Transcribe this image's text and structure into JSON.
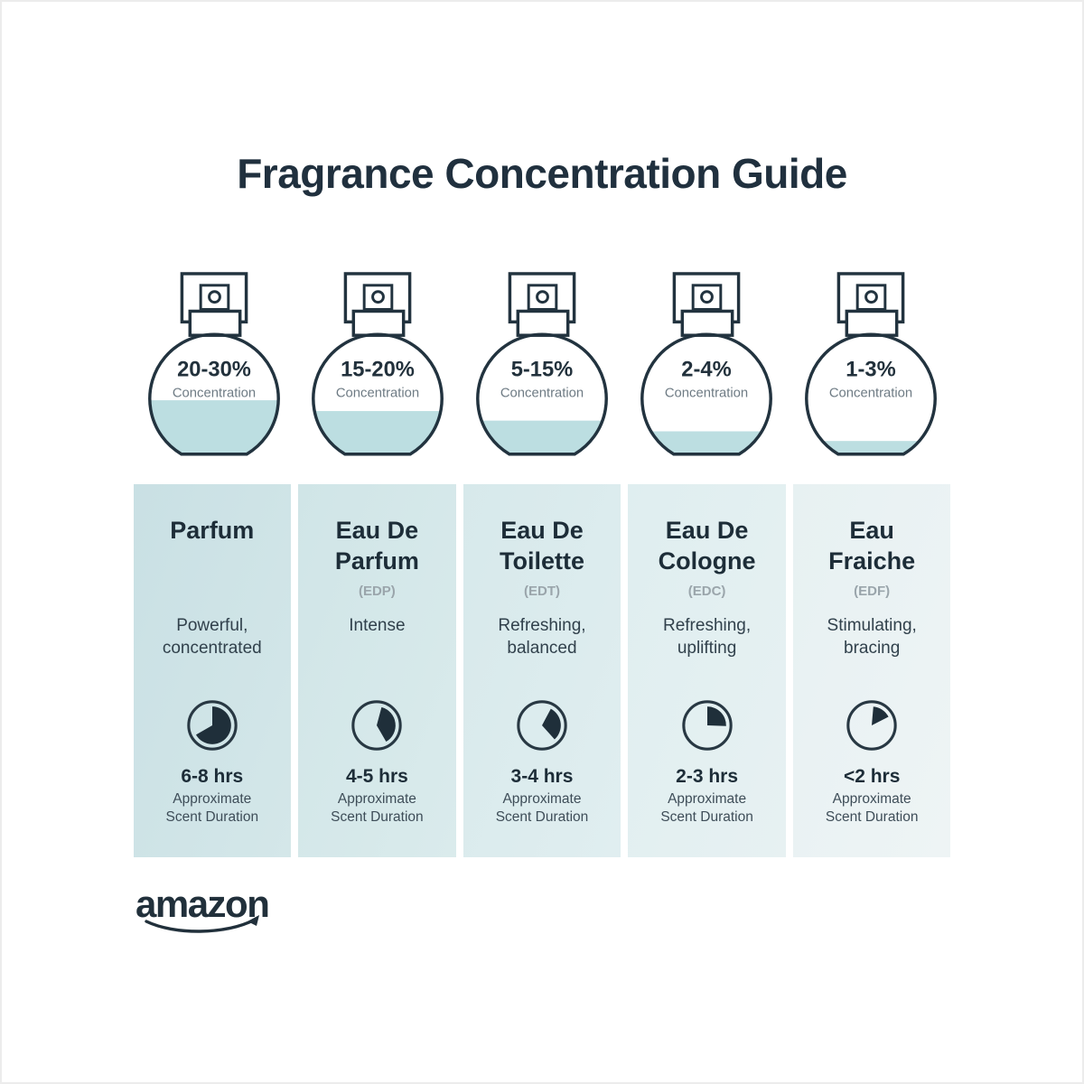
{
  "title": "Fragrance Concentration Guide",
  "colors": {
    "ink": "#20303e",
    "muted_gray": "#9aa5ab",
    "bottle_fill": "#bcdee1"
  },
  "bottles": [
    {
      "range": "20-30%",
      "caption": "Concentration",
      "fill_percent": 45
    },
    {
      "range": "15-20%",
      "caption": "Concentration",
      "fill_percent": 36
    },
    {
      "range": "5-15%",
      "caption": "Concentration",
      "fill_percent": 28
    },
    {
      "range": "2-4%",
      "caption": "Concentration",
      "fill_percent": 19
    },
    {
      "range": "1-3%",
      "caption": "Concentration",
      "fill_percent": 11
    }
  ],
  "columns": [
    {
      "name": "Parfum",
      "abbr": "",
      "description": "Powerful,\nconcentrated",
      "duration": "6-8 hrs",
      "duration_note": "Approximate\nScent Duration",
      "clock": {
        "start_deg": 0,
        "end_deg": 240
      }
    },
    {
      "name": "Eau De\nParfum",
      "abbr": "(EDP)",
      "description": "Intense",
      "duration": "4-5 hrs",
      "duration_note": "Approximate\nScent Duration",
      "clock": {
        "start_deg": 15,
        "end_deg": 150
      }
    },
    {
      "name": "Eau De\nToilette",
      "abbr": "(EDT)",
      "description": "Refreshing,\nbalanced",
      "duration": "3-4 hrs",
      "duration_note": "Approximate\nScent Duration",
      "clock": {
        "start_deg": 28,
        "end_deg": 138
      }
    },
    {
      "name": "Eau De\nCologne",
      "abbr": "(EDC)",
      "description": "Refreshing,\nuplifting",
      "duration": "2-3 hrs",
      "duration_note": "Approximate\nScent Duration",
      "clock": {
        "start_deg": 0,
        "end_deg": 92
      }
    },
    {
      "name": "Eau\nFraiche",
      "abbr": "(EDF)",
      "description": "Stimulating,\nbracing",
      "duration": "<2 hrs",
      "duration_note": "Approximate\nScent Duration",
      "clock": {
        "start_deg": 5,
        "end_deg": 63
      }
    }
  ],
  "footer": {
    "logo_text": "amazon"
  }
}
